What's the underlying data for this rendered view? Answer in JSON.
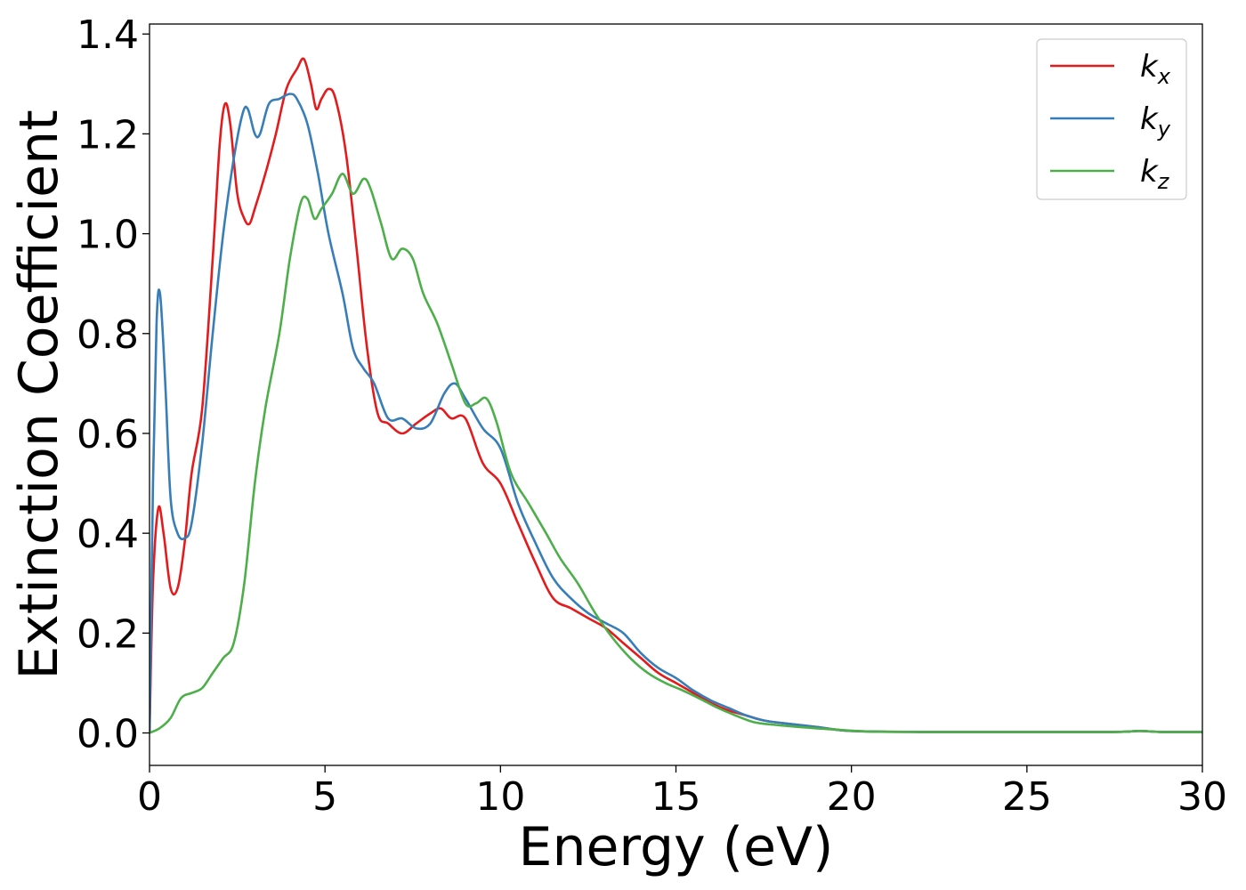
{
  "chart_data": {
    "type": "line",
    "xlabel": "Energy (eV)",
    "ylabel": "Extinction Coefficient",
    "xlim": [
      0,
      30
    ],
    "ylim": [
      -0.065,
      1.42
    ],
    "x_ticks": [
      "0",
      "5",
      "10",
      "15",
      "20",
      "25",
      "30"
    ],
    "y_ticks": [
      "0.0",
      "0.2",
      "0.4",
      "0.6",
      "0.8",
      "1.0",
      "1.2",
      "1.4"
    ],
    "grid": false,
    "legend_position": "top-right",
    "series": [
      {
        "name": "k",
        "sub": "x",
        "color": "#e41a1c",
        "points": [
          [
            0,
            0
          ],
          [
            0.1,
            0.3
          ],
          [
            0.25,
            0.45
          ],
          [
            0.4,
            0.4
          ],
          [
            0.6,
            0.29
          ],
          [
            0.8,
            0.29
          ],
          [
            1.0,
            0.38
          ],
          [
            1.2,
            0.52
          ],
          [
            1.5,
            0.65
          ],
          [
            1.8,
            0.95
          ],
          [
            2.0,
            1.18
          ],
          [
            2.15,
            1.26
          ],
          [
            2.3,
            1.22
          ],
          [
            2.5,
            1.08
          ],
          [
            2.7,
            1.03
          ],
          [
            2.85,
            1.02
          ],
          [
            3.0,
            1.05
          ],
          [
            3.3,
            1.12
          ],
          [
            3.6,
            1.2
          ],
          [
            3.9,
            1.29
          ],
          [
            4.2,
            1.33
          ],
          [
            4.4,
            1.35
          ],
          [
            4.6,
            1.3
          ],
          [
            4.75,
            1.25
          ],
          [
            4.9,
            1.27
          ],
          [
            5.1,
            1.29
          ],
          [
            5.3,
            1.27
          ],
          [
            5.6,
            1.16
          ],
          [
            5.9,
            0.97
          ],
          [
            6.2,
            0.77
          ],
          [
            6.5,
            0.64
          ],
          [
            6.8,
            0.62
          ],
          [
            7.2,
            0.6
          ],
          [
            7.6,
            0.62
          ],
          [
            8.0,
            0.64
          ],
          [
            8.3,
            0.65
          ],
          [
            8.6,
            0.63
          ],
          [
            9.0,
            0.63
          ],
          [
            9.5,
            0.54
          ],
          [
            10.0,
            0.5
          ],
          [
            10.5,
            0.42
          ],
          [
            11.0,
            0.34
          ],
          [
            11.5,
            0.27
          ],
          [
            12.0,
            0.25
          ],
          [
            12.5,
            0.23
          ],
          [
            13.0,
            0.21
          ],
          [
            13.5,
            0.18
          ],
          [
            14.0,
            0.15
          ],
          [
            14.5,
            0.12
          ],
          [
            15.0,
            0.1
          ],
          [
            15.5,
            0.08
          ],
          [
            16.0,
            0.06
          ],
          [
            16.5,
            0.045
          ],
          [
            17.0,
            0.035
          ],
          [
            17.5,
            0.025
          ],
          [
            18.0,
            0.02
          ],
          [
            19.0,
            0.012
          ],
          [
            20.0,
            0.004
          ],
          [
            22.0,
            0.002
          ],
          [
            25.0,
            0.002
          ],
          [
            27.5,
            0.002
          ],
          [
            28.2,
            0.004
          ],
          [
            28.8,
            0.002
          ],
          [
            30.0,
            0.002
          ]
        ]
      },
      {
        "name": "k",
        "sub": "y",
        "color": "#377eb8",
        "points": [
          [
            0,
            0
          ],
          [
            0.1,
            0.5
          ],
          [
            0.2,
            0.82
          ],
          [
            0.3,
            0.88
          ],
          [
            0.45,
            0.7
          ],
          [
            0.6,
            0.47
          ],
          [
            0.8,
            0.4
          ],
          [
            1.0,
            0.39
          ],
          [
            1.2,
            0.42
          ],
          [
            1.5,
            0.58
          ],
          [
            1.8,
            0.8
          ],
          [
            2.1,
            1.0
          ],
          [
            2.4,
            1.15
          ],
          [
            2.65,
            1.24
          ],
          [
            2.8,
            1.25
          ],
          [
            3.0,
            1.2
          ],
          [
            3.15,
            1.2
          ],
          [
            3.4,
            1.26
          ],
          [
            3.7,
            1.27
          ],
          [
            4.0,
            1.28
          ],
          [
            4.2,
            1.27
          ],
          [
            4.5,
            1.22
          ],
          [
            4.8,
            1.12
          ],
          [
            5.1,
            1.0
          ],
          [
            5.5,
            0.88
          ],
          [
            5.8,
            0.77
          ],
          [
            6.1,
            0.73
          ],
          [
            6.4,
            0.7
          ],
          [
            6.8,
            0.63
          ],
          [
            7.2,
            0.63
          ],
          [
            7.6,
            0.61
          ],
          [
            8.0,
            0.62
          ],
          [
            8.4,
            0.68
          ],
          [
            8.7,
            0.7
          ],
          [
            9.0,
            0.67
          ],
          [
            9.5,
            0.61
          ],
          [
            10.0,
            0.57
          ],
          [
            10.5,
            0.46
          ],
          [
            11.0,
            0.38
          ],
          [
            11.5,
            0.31
          ],
          [
            12.0,
            0.27
          ],
          [
            12.5,
            0.24
          ],
          [
            13.0,
            0.22
          ],
          [
            13.5,
            0.2
          ],
          [
            14.0,
            0.16
          ],
          [
            14.5,
            0.13
          ],
          [
            15.0,
            0.11
          ],
          [
            15.5,
            0.085
          ],
          [
            16.0,
            0.065
          ],
          [
            16.5,
            0.05
          ],
          [
            17.0,
            0.035
          ],
          [
            17.5,
            0.025
          ],
          [
            18.0,
            0.02
          ],
          [
            19.0,
            0.012
          ],
          [
            20.0,
            0.004
          ],
          [
            22.0,
            0.002
          ],
          [
            25.0,
            0.002
          ],
          [
            27.5,
            0.002
          ],
          [
            28.2,
            0.004
          ],
          [
            28.8,
            0.002
          ],
          [
            30.0,
            0.002
          ]
        ]
      },
      {
        "name": "k",
        "sub": "z",
        "color": "#4daf4a",
        "points": [
          [
            0,
            0
          ],
          [
            0.3,
            0.01
          ],
          [
            0.6,
            0.03
          ],
          [
            0.9,
            0.07
          ],
          [
            1.2,
            0.08
          ],
          [
            1.5,
            0.09
          ],
          [
            1.8,
            0.12
          ],
          [
            2.1,
            0.15
          ],
          [
            2.4,
            0.18
          ],
          [
            2.7,
            0.3
          ],
          [
            3.0,
            0.5
          ],
          [
            3.3,
            0.65
          ],
          [
            3.7,
            0.8
          ],
          [
            4.0,
            0.95
          ],
          [
            4.3,
            1.06
          ],
          [
            4.5,
            1.07
          ],
          [
            4.7,
            1.03
          ],
          [
            4.9,
            1.05
          ],
          [
            5.2,
            1.08
          ],
          [
            5.5,
            1.12
          ],
          [
            5.8,
            1.08
          ],
          [
            6.1,
            1.11
          ],
          [
            6.3,
            1.09
          ],
          [
            6.6,
            1.02
          ],
          [
            6.9,
            0.95
          ],
          [
            7.2,
            0.97
          ],
          [
            7.5,
            0.95
          ],
          [
            7.8,
            0.88
          ],
          [
            8.2,
            0.82
          ],
          [
            8.6,
            0.74
          ],
          [
            9.0,
            0.66
          ],
          [
            9.3,
            0.66
          ],
          [
            9.6,
            0.67
          ],
          [
            9.9,
            0.62
          ],
          [
            10.3,
            0.52
          ],
          [
            10.8,
            0.46
          ],
          [
            11.3,
            0.4
          ],
          [
            11.7,
            0.35
          ],
          [
            12.2,
            0.3
          ],
          [
            12.7,
            0.24
          ],
          [
            13.2,
            0.19
          ],
          [
            13.7,
            0.15
          ],
          [
            14.2,
            0.12
          ],
          [
            14.7,
            0.1
          ],
          [
            15.2,
            0.085
          ],
          [
            15.7,
            0.068
          ],
          [
            16.2,
            0.05
          ],
          [
            16.7,
            0.035
          ],
          [
            17.2,
            0.022
          ],
          [
            17.7,
            0.017
          ],
          [
            18.5,
            0.012
          ],
          [
            19.5,
            0.007
          ],
          [
            20.5,
            0.003
          ],
          [
            22.0,
            0.002
          ],
          [
            25.0,
            0.002
          ],
          [
            27.5,
            0.002
          ],
          [
            28.2,
            0.004
          ],
          [
            28.8,
            0.002
          ],
          [
            30.0,
            0.002
          ]
        ]
      }
    ]
  }
}
